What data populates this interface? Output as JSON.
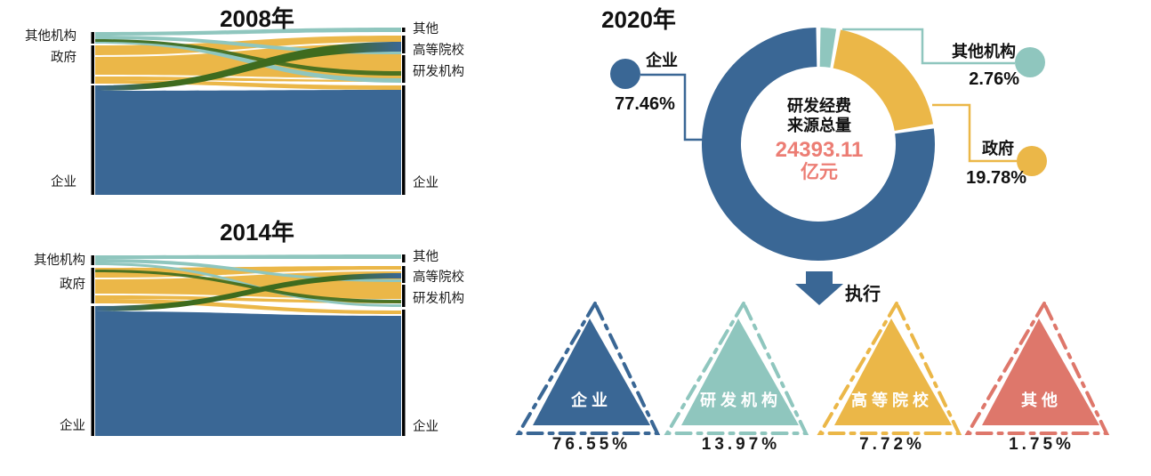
{
  "colors": {
    "blue": "#3A6795",
    "yellow": "#EBB748",
    "teal": "#8FC6BE",
    "salmon": "#DE776B",
    "dark_green": "#3E6B1E",
    "node_bar": "#000000",
    "center_number": "#EC7D74",
    "text": "#1A1A1A"
  },
  "chart_data": [
    {
      "type": "sankey",
      "title": "2008年",
      "left_nodes": [
        "其他机构",
        "政府",
        "企业"
      ],
      "right_nodes": [
        "其他",
        "高等院校",
        "研发机构",
        "企业"
      ],
      "node_colors": {
        "企业": "#3A6795",
        "政府": "#EBB748",
        "其他机构": "#8FC6BE"
      }
    },
    {
      "type": "sankey",
      "title": "2014年",
      "left_nodes": [
        "其他机构",
        "政府",
        "企业"
      ],
      "right_nodes": [
        "其他",
        "高等院校",
        "研发机构",
        "企业"
      ],
      "node_colors": {
        "企业": "#3A6795",
        "政府": "#EBB748",
        "其他机构": "#8FC6BE"
      }
    },
    {
      "type": "pie",
      "subtype": "donut",
      "title": "2020年",
      "center_label_line1": "研发经费",
      "center_label_line2": "来源总量",
      "total_value": "24393.11",
      "total_unit": "亿元",
      "slices": [
        {
          "label": "企业",
          "value": 77.46,
          "percent_label": "77.46%",
          "color": "#3A6795"
        },
        {
          "label": "其他机构",
          "value": 2.76,
          "percent_label": "2.76%",
          "color": "#8FC6BE"
        },
        {
          "label": "政府",
          "value": 19.78,
          "percent_label": "19.78%",
          "color": "#EBB748"
        }
      ]
    },
    {
      "type": "bar",
      "subtype": "triangle-icons",
      "arrow_label": "执行",
      "categories": [
        "企业",
        "研发机构",
        "高等院校",
        "其他"
      ],
      "values": [
        76.55,
        13.97,
        7.72,
        1.75
      ],
      "percent_labels": [
        "76.55%",
        "13.97%",
        "7.72%",
        "1.75%"
      ],
      "item_colors": [
        "#3A6795",
        "#8FC6BE",
        "#EBB748",
        "#DE776B"
      ]
    }
  ]
}
